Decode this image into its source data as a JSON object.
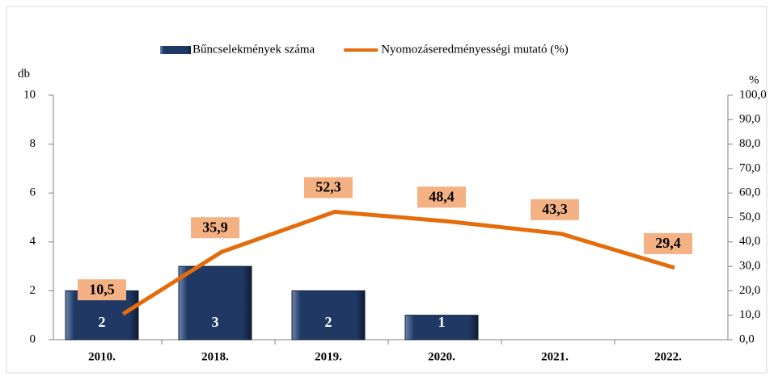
{
  "chart_data": {
    "type": "bar",
    "categories": [
      "2010.",
      "2018.",
      "2019.",
      "2020.",
      "2021.",
      "2022."
    ],
    "series": [
      {
        "name": "Bűncselekmények száma",
        "type": "bar",
        "color": "#1f3864",
        "values": [
          2,
          3,
          2,
          1,
          null,
          null
        ]
      },
      {
        "name": "Nyomozáseredményességi mutató (%)",
        "type": "line",
        "axis": "y2",
        "color": "#e46c0a",
        "values": [
          10.5,
          35.9,
          52.3,
          48.4,
          43.3,
          29.4
        ],
        "value_labels": [
          "10,5",
          "35,9",
          "52,3",
          "48,4",
          "43,3",
          "29,4"
        ]
      }
    ],
    "ylabel": "db",
    "y2label": "%",
    "ylim": [
      0,
      10
    ],
    "yticks": [
      0,
      2,
      4,
      6,
      8,
      10
    ],
    "y2lim": [
      0,
      100
    ],
    "y2ticks": [
      {
        "value": 0,
        "label": "0,0"
      },
      {
        "value": 10,
        "label": "10,0"
      },
      {
        "value": 20,
        "label": "20,0"
      },
      {
        "value": 30,
        "label": "30,0"
      },
      {
        "value": 40,
        "label": "40,0"
      },
      {
        "value": 50,
        "label": "50,0"
      },
      {
        "value": 60,
        "label": "60,0"
      },
      {
        "value": 70,
        "label": "70,0"
      },
      {
        "value": 80,
        "label": "80,0"
      },
      {
        "value": 90,
        "label": "90,0"
      },
      {
        "value": 100,
        "label": "100,0"
      }
    ],
    "legend": "top"
  }
}
